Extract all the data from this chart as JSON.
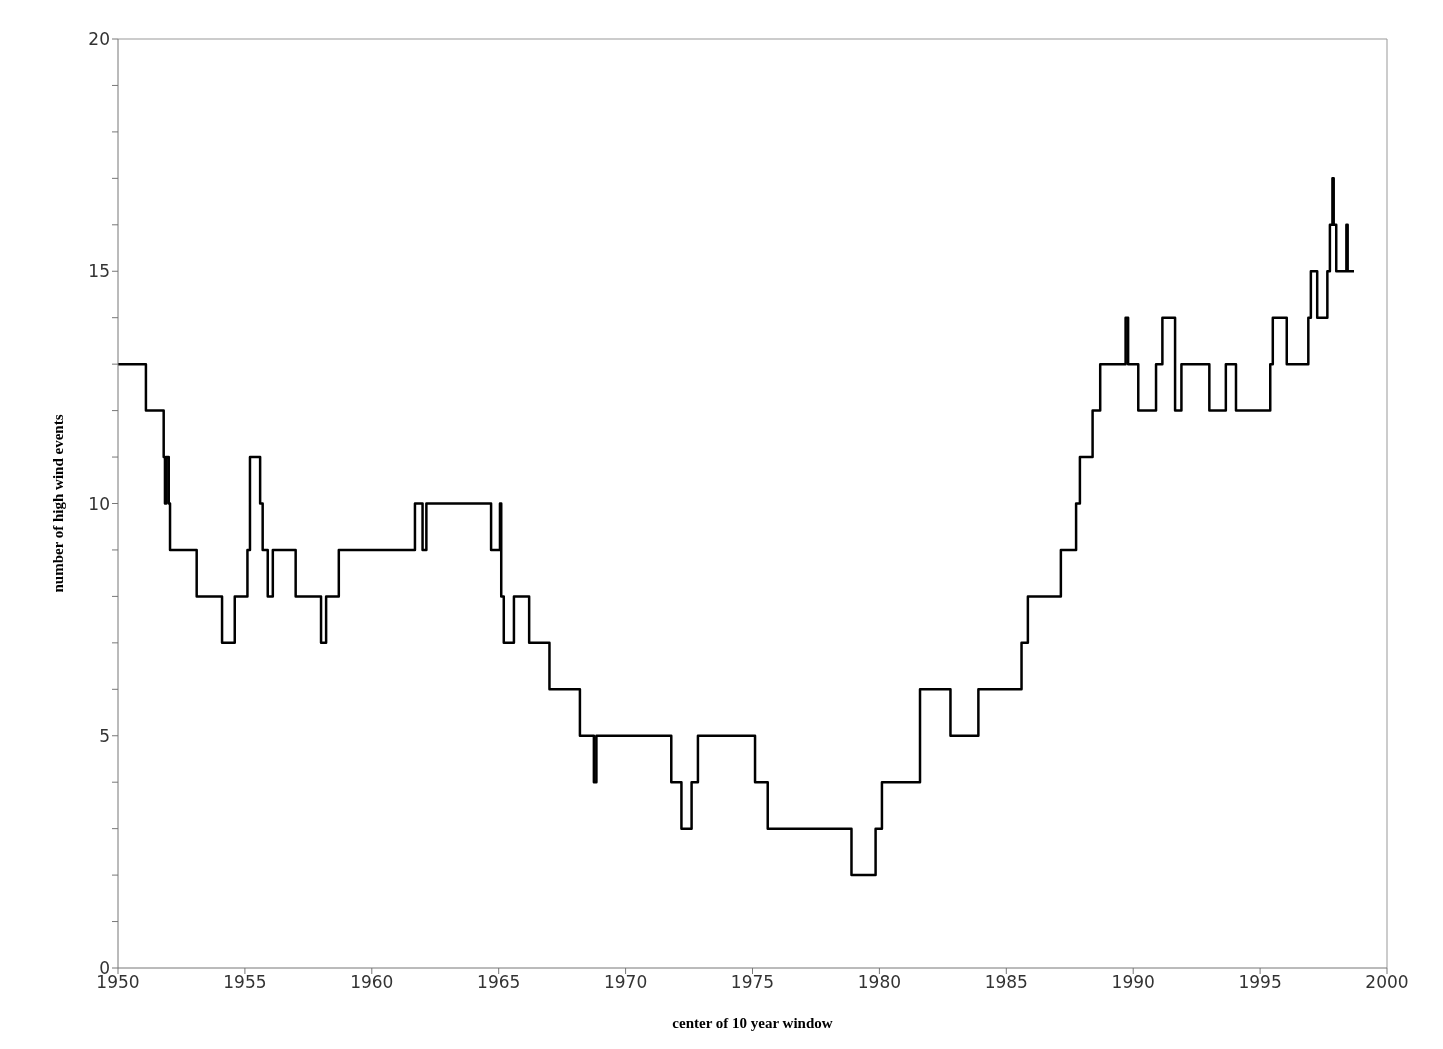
{
  "chart_data": {
    "type": "step",
    "xlabel": "center of 10 year window",
    "ylabel": "number of high wind events",
    "x": [
      1950,
      1951.1,
      1951.8,
      1951.85,
      1951.9,
      1952.0,
      1952.05,
      1952.1,
      1953.1,
      1954.1,
      1954.6,
      1955.1,
      1955.2,
      1955.6,
      1955.7,
      1955.8,
      1955.9,
      1956.1,
      1957.0,
      1958.0,
      1958.1,
      1958.2,
      1958.7,
      1961.7,
      1962.0,
      1962.05,
      1962.15,
      1964.7,
      1965.0,
      1965.05,
      1965.1,
      1965.2,
      1965.6,
      1966.2,
      1967.0,
      1968.2,
      1968.75,
      1968.85,
      1971.8,
      1972.1,
      1972.2,
      1972.6,
      1972.75,
      1972.85,
      1975.1,
      1975.6,
      1978.9,
      1979.0,
      1979.85,
      1979.95,
      1980.1,
      1981.6,
      1981.65,
      1982.8,
      1983.9,
      1985.6,
      1985.7,
      1985.85,
      1987.15,
      1987.75,
      1987.8,
      1987.9,
      1988.4,
      1988.5,
      1988.7,
      1989.7,
      1989.8,
      1989.9,
      1990.2,
      1990.9,
      1991.0,
      1991.15,
      1991.65,
      1991.7,
      1991.9,
      1993.0,
      1993.65,
      1994.05,
      1995.4,
      1995.5,
      1995.8,
      1996.05,
      1996.9,
      1997.0,
      1997.15,
      1997.25,
      1997.65,
      1997.75,
      1997.85,
      1997.9,
      1998.0,
      1998.4,
      1998.45,
      1998.7
    ],
    "series": [
      {
        "color": "#000000",
        "values": [
          13,
          12,
          11,
          10,
          11,
          10,
          9,
          9,
          8,
          7,
          8,
          9,
          11,
          10,
          9,
          9,
          8,
          9,
          8,
          7,
          7,
          8,
          9,
          10,
          9,
          9,
          10,
          9,
          9,
          10,
          8,
          7,
          8,
          7,
          6,
          5,
          4,
          5,
          4,
          4,
          3,
          4,
          4,
          5,
          4,
          3,
          2,
          2,
          3,
          3,
          4,
          6,
          6,
          5,
          6,
          7,
          7,
          8,
          9,
          10,
          10,
          11,
          12,
          12,
          13,
          14,
          13,
          13,
          12,
          13,
          13,
          14,
          12,
          12,
          13,
          12,
          13,
          12,
          13,
          14,
          14,
          13,
          14,
          15,
          15,
          14,
          15,
          16,
          17,
          16,
          15,
          16,
          15,
          15
        ]
      }
    ],
    "xlim": [
      1950,
      2000
    ],
    "xticks": [
      1950,
      1955,
      1960,
      1965,
      1970,
      1975,
      1980,
      1985,
      1990,
      1995,
      2000
    ],
    "ylim": [
      0,
      20
    ],
    "yticks": [
      0,
      {
        "value": 1,
        "label": null
      },
      {
        "value": 2,
        "label": null
      },
      {
        "value": 3,
        "label": null
      },
      {
        "value": 4,
        "label": null
      },
      5,
      {
        "value": 6,
        "label": null
      },
      {
        "value": 7,
        "label": null
      },
      {
        "value": 8,
        "label": null
      },
      {
        "value": 9,
        "label": null
      },
      10,
      {
        "value": 11,
        "label": null
      },
      {
        "value": 12,
        "label": null
      },
      {
        "value": 13,
        "label": null
      },
      {
        "value": 14,
        "label": null
      },
      15,
      {
        "value": 16,
        "label": null
      },
      {
        "value": 17,
        "label": null
      },
      {
        "value": 18,
        "label": null
      },
      {
        "value": 19,
        "label": null
      },
      20
    ],
    "grid": false,
    "legend": false
  }
}
